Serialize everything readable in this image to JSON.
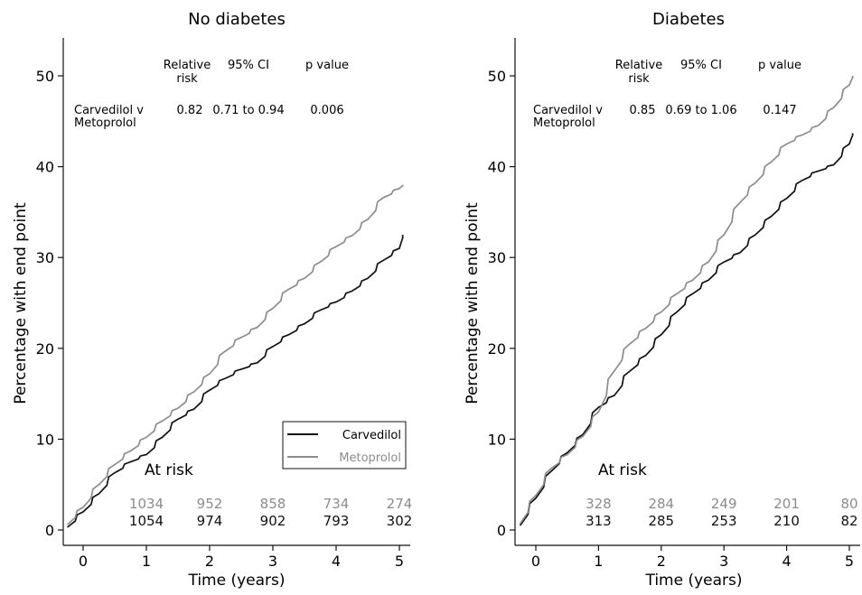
{
  "chart_data": [
    {
      "type": "line",
      "title": "No diabetes",
      "xlabel": "Time (years)",
      "ylabel": "Percentage with end point",
      "xlim": [
        -0.3,
        5.1
      ],
      "ylim": [
        -1,
        54
      ],
      "xticks": [
        0,
        1,
        2,
        3,
        4,
        5
      ],
      "yticks": [
        0,
        10,
        20,
        30,
        40,
        50
      ],
      "legend": {
        "placement": "lower-right",
        "entries": [
          "Carvedilol",
          "Metoprolol"
        ]
      },
      "series": [
        {
          "name": "Carvedilol",
          "color": "#111111",
          "x": [
            -0.25,
            0,
            0.25,
            0.5,
            0.75,
            1,
            1.25,
            1.5,
            1.75,
            2,
            2.25,
            2.5,
            2.75,
            3,
            3.25,
            3.5,
            3.75,
            4,
            4.25,
            4.5,
            4.75,
            5,
            5.05
          ],
          "y": [
            0.3,
            2,
            4,
            6.3,
            7.5,
            8.3,
            10.2,
            12.2,
            13.3,
            15.4,
            16.7,
            17.7,
            18.4,
            20.2,
            21.5,
            22.7,
            24.2,
            25.1,
            26.3,
            27.7,
            29.7,
            31,
            32.5
          ]
        },
        {
          "name": "Metoprolol",
          "color": "#8c8c8c",
          "x": [
            -0.25,
            0,
            0.25,
            0.5,
            0.75,
            1,
            1.25,
            1.5,
            1.75,
            2,
            2.25,
            2.5,
            2.75,
            3,
            3.25,
            3.5,
            3.75,
            4,
            4.25,
            4.5,
            4.75,
            5,
            5.05
          ],
          "y": [
            0.6,
            2.5,
            5,
            7.2,
            8.7,
            10.2,
            12,
            13.4,
            15.2,
            17.2,
            19.7,
            21.2,
            22.3,
            24.4,
            26.5,
            27.7,
            29.5,
            31.2,
            32.4,
            34.2,
            36.6,
            37.6,
            38
          ]
        }
      ],
      "table": {
        "headers": [
          "Relative risk",
          "95% CI",
          "p value"
        ],
        "row_label": "Carvedilol v Metoprolol",
        "values": [
          "0.82",
          "0.71 to 0.94",
          "0.006"
        ]
      },
      "at_risk": {
        "label": "At risk",
        "times": [
          1,
          2,
          3,
          4,
          5
        ],
        "metoprolol": [
          "1034",
          "952",
          "858",
          "734",
          "274"
        ],
        "carvedilol": [
          "1054",
          "974",
          "902",
          "793",
          "302"
        ]
      }
    },
    {
      "type": "line",
      "title": "Diabetes",
      "xlabel": "Time (years)",
      "ylabel": "Percentage with end point",
      "xlim": [
        -0.3,
        5.1
      ],
      "ylim": [
        -1,
        54
      ],
      "xticks": [
        0,
        1,
        2,
        3,
        4,
        5
      ],
      "yticks": [
        0,
        10,
        20,
        30,
        40,
        50
      ],
      "series": [
        {
          "name": "Carvedilol",
          "color": "#111111",
          "x": [
            -0.25,
            0,
            0.25,
            0.5,
            0.75,
            1,
            1.25,
            1.5,
            1.75,
            2,
            2.25,
            2.5,
            2.75,
            3,
            3.25,
            3.5,
            3.75,
            4,
            4.25,
            4.5,
            4.75,
            5,
            5.05
          ],
          "y": [
            0.5,
            3.5,
            6.5,
            8.5,
            10.5,
            13.5,
            14.8,
            17.5,
            19.2,
            21.5,
            24,
            26,
            27.5,
            29.5,
            30.5,
            32.5,
            34.5,
            36.5,
            38.5,
            39.5,
            40.2,
            42.5,
            43.7
          ]
        },
        {
          "name": "Metoprolol",
          "color": "#8c8c8c",
          "x": [
            -0.25,
            0,
            0.25,
            0.5,
            0.75,
            1,
            1.25,
            1.5,
            1.75,
            2,
            2.25,
            2.5,
            2.75,
            3,
            3.25,
            3.5,
            3.75,
            4,
            4.25,
            4.5,
            4.75,
            5,
            5.05
          ],
          "y": [
            0.7,
            3.8,
            6.8,
            8.3,
            10.3,
            13,
            17.5,
            20.5,
            22.2,
            24,
            26,
            27.5,
            29.5,
            32.5,
            36,
            38.2,
            40.5,
            42.5,
            43.5,
            44.5,
            46.5,
            49,
            50
          ]
        }
      ],
      "table": {
        "headers": [
          "Relative risk",
          "95% CI",
          "p value"
        ],
        "row_label": "Carvedilol v Metoprolol",
        "values": [
          "0.85",
          "0.69 to 1.06",
          "0.147"
        ]
      },
      "at_risk": {
        "label": "At risk",
        "times": [
          1,
          2,
          3,
          4,
          5
        ],
        "metoprolol": [
          "328",
          "284",
          "249",
          "201",
          "80"
        ],
        "carvedilol": [
          "313",
          "285",
          "253",
          "210",
          "82"
        ]
      }
    }
  ],
  "strings": {
    "left_title": "No diabetes",
    "right_title": "Diabetes",
    "ylabel": "Percentage with end point",
    "xlabel": "Time (years)",
    "relative": "Relative",
    "risk": "risk",
    "ci": "95% CI",
    "pvalue": "p value",
    "row1": "Carvedilol v",
    "row2": "Metoprolol",
    "left_rr": "0.82",
    "left_ci": "0.71 to 0.94",
    "left_p": "0.006",
    "right_rr": "0.85",
    "right_ci": "0.69 to 1.06",
    "right_p": "0.147",
    "at_risk": "At risk",
    "legend_carv": "Carvedilol",
    "legend_meto": "Metoprolol"
  }
}
